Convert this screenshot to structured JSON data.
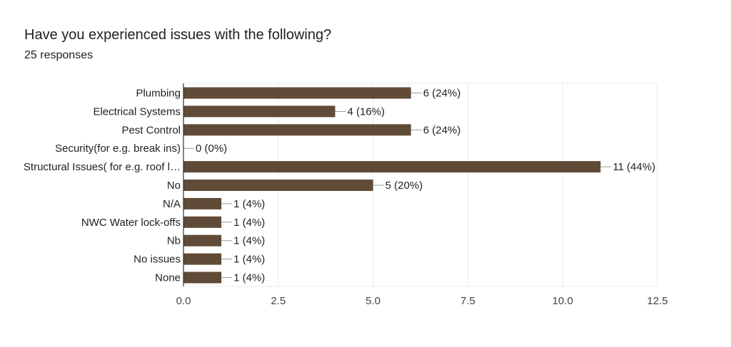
{
  "header": {
    "title": "Have you experienced issues with the following?",
    "responses": "25 responses"
  },
  "colors": {
    "bar": "#5f4b37",
    "grid": "#e8e8e8",
    "axis": "#333333",
    "connector": "#999999"
  },
  "chart_data": {
    "type": "bar",
    "orientation": "horizontal",
    "title": "Have you experienced issues with the following?",
    "subtitle": "25 responses",
    "categories": [
      "Plumbing",
      "Electrical Systems",
      "Pest Control",
      "Security(for e.g. break ins)",
      "Structural Issues( for e.g. roof l…",
      "No",
      "N/A",
      "NWC Water lock-offs",
      "Nb",
      "No issues",
      "None"
    ],
    "values": [
      6,
      4,
      6,
      0,
      11,
      5,
      1,
      1,
      1,
      1,
      1
    ],
    "value_labels": [
      "6 (24%)",
      "4 (16%)",
      "6 (24%)",
      "0 (0%)",
      "11 (44%)",
      "5 (20%)",
      "1 (4%)",
      "1 (4%)",
      "1 (4%)",
      "1 (4%)",
      "1 (4%)"
    ],
    "xlim": [
      0,
      12.5
    ],
    "xticks": [
      0,
      2.5,
      5,
      7.5,
      10,
      12.5
    ],
    "xtick_labels": [
      "0.0",
      "2.5",
      "5.0",
      "7.5",
      "10.0",
      "12.5"
    ],
    "xlabel": "",
    "ylabel": "",
    "grid": true
  }
}
